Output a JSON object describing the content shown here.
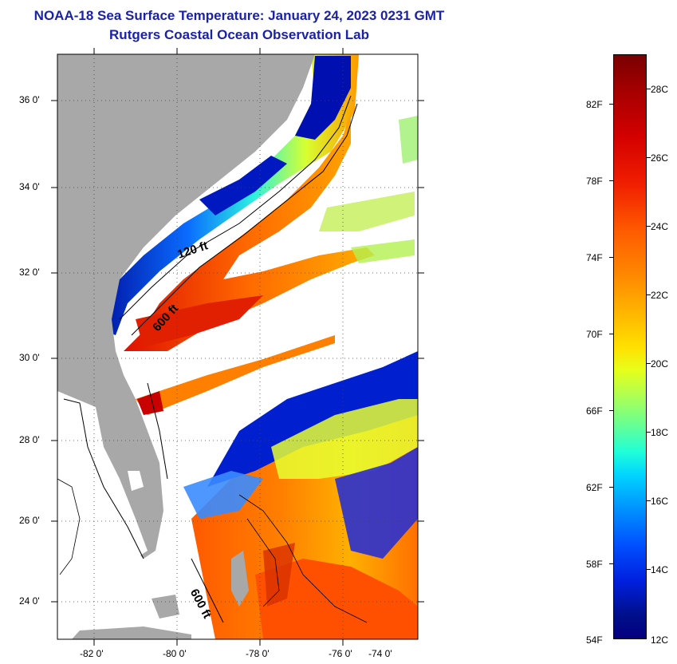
{
  "title": {
    "line1": "NOAA-18 Sea Surface Temperature:  January 24, 2023 0231 GMT",
    "line2": "Rutgers Coastal Ocean Observation Lab"
  },
  "map": {
    "lat_labels": [
      "36 0'",
      "34 0'",
      "32 0'",
      "30 0'",
      "28 0'",
      "26 0'",
      "24 0'"
    ],
    "lon_labels": [
      "-82 0'",
      "-80 0'",
      "-78 0'",
      "-76 0'",
      "-74 0'"
    ],
    "contour_labels": [
      "120 ft",
      "600 ft",
      "600 ft"
    ],
    "colors": {
      "land": "#a8a8a8",
      "cold": "#0a1aa8",
      "warm": "#ff6a00",
      "hot": "#d40000",
      "cloud": "#ffffff"
    }
  },
  "colorbar": {
    "fahrenheit": [
      "82F",
      "78F",
      "74F",
      "70F",
      "66F",
      "62F",
      "58F",
      "54F"
    ],
    "celsius": [
      "28C",
      "26C",
      "24C",
      "22C",
      "20C",
      "18C",
      "16C",
      "14C",
      "12C"
    ]
  }
}
